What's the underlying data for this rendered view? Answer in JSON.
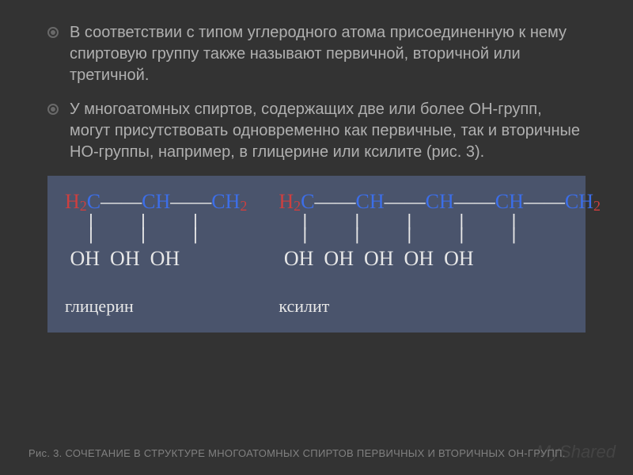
{
  "bullets": [
    "В соответствии с типом углеродного атома присоединенную к нему спиртовую группу также называют первичной, вторичной или третичной.",
    "У многоатомных спиртов, содержащих две или более ОН-групп, могут присутствовать одновременно как первичные, так и вторичные НО-группы, например, в глицерине или ксилите (рис. 3)."
  ],
  "diagram": {
    "background_color": "#4a546c",
    "colors": {
      "H": "#ce3f3f",
      "C": "#3c6ee8",
      "bond": "#e8e8e8",
      "OH": "#e8e8e8",
      "label": "#e8e8e8"
    },
    "font_family": "Times New Roman, serif",
    "carbon_fontsize_pt": 20,
    "oh_fontsize_pt": 20,
    "label_fontsize_pt": 17,
    "molecules": [
      {
        "type": "polyol-chain",
        "carbons": 3,
        "groups": [
          "H2C",
          "CH",
          "CH2"
        ],
        "oh_count": 3,
        "label": "глицерин"
      },
      {
        "type": "polyol-chain",
        "carbons": 5,
        "groups": [
          "H2C",
          "CH",
          "CH",
          "CH",
          "CH2"
        ],
        "oh_count": 5,
        "label": "ксилит"
      }
    ]
  },
  "caption": "Рис. 3. СОЧЕТАНИЕ В СТРУКТУРЕ МНОГОАТОМНЫХ СПИРТОВ ПЕРВИЧНЫХ И ВТОРИЧНЫХ ОН-ГРУПП.",
  "ghost_brand": "MyShared",
  "text_colors": {
    "body_text": "#b0b0b0",
    "caption": "#808080"
  },
  "slide_background": "#333333"
}
